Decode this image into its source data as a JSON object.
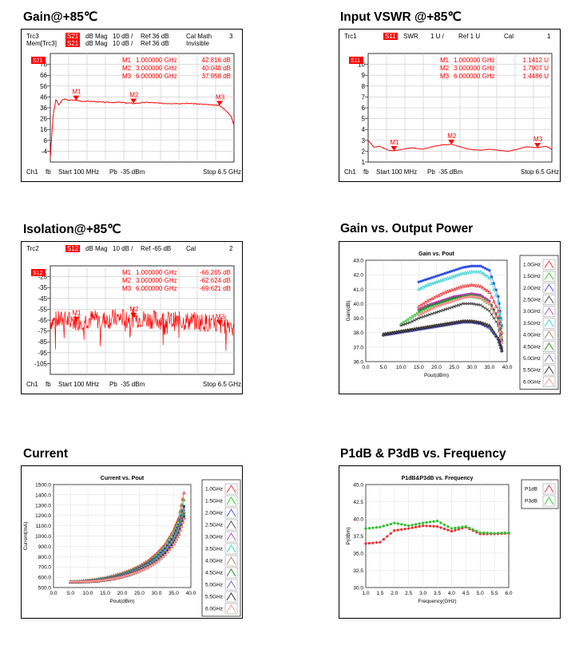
{
  "titles": {
    "p1": "Gain@+85℃",
    "p2": "Input VSWR @+85℃",
    "p3": "Isolation@+85℃",
    "p4": "Gain vs. Output Power",
    "p5": "Current",
    "p6": "P1dB & P3dB vs. Frequency"
  },
  "colors": {
    "trace": "#ff0000",
    "marker": "#e00000",
    "grid": "#c8c8c8"
  },
  "chart_data": [
    {
      "id": "gain85",
      "type": "line",
      "header": [
        [
          "Trc3",
          "S21",
          "dB Mag",
          "10 dB /",
          "Ref 36 dB",
          "Cal Math",
          "3"
        ],
        [
          "Mem[Trc3]",
          "S21",
          "dB Mag",
          "10 dB /",
          "Ref 36 dB",
          "Invisible",
          ""
        ]
      ],
      "markers": [
        {
          "label": "M1",
          "freq": "1.000000 GHz",
          "value": "42.816 dB",
          "x": 1.0,
          "y": 42.816
        },
        {
          "label": "M2",
          "freq": "3.000000 GHz",
          "value": "40.048 dB",
          "x": 3.0,
          "y": 40.048
        },
        {
          "label": "M3",
          "freq": "6.000000 GHz",
          "value": "37.958 dB",
          "x": 6.0,
          "y": 37.958
        }
      ],
      "trace_tag": "S21",
      "yticks": [
        "76",
        "66",
        "56",
        "46",
        "36",
        "26",
        "16",
        "6",
        "-4"
      ],
      "footer": [
        "Ch1",
        "fb",
        "Start 100 MHz",
        "Pb",
        "-35 dBm",
        "Stop 6.5 GHz"
      ],
      "xlim": [
        0.1,
        6.5
      ],
      "ylim": [
        -14,
        86
      ],
      "x": [
        0.1,
        0.2,
        0.3,
        0.4,
        0.5,
        0.6,
        0.7,
        0.8,
        1.0,
        1.2,
        1.5,
        2.0,
        2.5,
        3.0,
        3.5,
        4.0,
        4.5,
        5.0,
        5.5,
        6.0,
        6.2,
        6.4,
        6.5
      ],
      "values": [
        -10,
        30,
        44,
        38,
        43,
        44,
        43,
        43,
        43,
        42,
        42,
        41,
        41,
        40,
        41,
        40,
        40,
        40,
        39,
        38,
        34,
        28,
        20
      ]
    },
    {
      "id": "vswr85",
      "type": "line",
      "header": [
        [
          "Trc1",
          "S11",
          "SWR",
          "1 U /",
          "Ref 1 U",
          "Cal",
          "1"
        ]
      ],
      "markers": [
        {
          "label": "M1",
          "freq": "1.000000 GHz",
          "value": "1.1412 U",
          "x": 1.0,
          "y": 1.1412
        },
        {
          "label": "M2",
          "freq": "3.000000 GHz",
          "value": "1.7907 U",
          "x": 3.0,
          "y": 1.7907
        },
        {
          "label": "M3",
          "freq": "6.000000 GHz",
          "value": "1.4486 U",
          "x": 6.0,
          "y": 1.4486
        }
      ],
      "trace_tag": "S11",
      "yticks": [
        "10",
        "9",
        "8",
        "7",
        "6",
        "5",
        "4",
        "3",
        "2",
        "1"
      ],
      "footer": [
        "Ch1",
        "fb",
        "Start 100 MHz",
        "Pb",
        "-35 dBm",
        "Stop 6.5 GHz"
      ],
      "xlim": [
        0.1,
        6.5
      ],
      "ylim": [
        0,
        11
      ],
      "x": [
        0.1,
        0.3,
        0.5,
        0.8,
        1.0,
        1.3,
        1.6,
        2.0,
        2.4,
        2.7,
        3.0,
        3.3,
        3.6,
        4.0,
        4.3,
        4.6,
        5.0,
        5.3,
        5.6,
        6.0,
        6.3,
        6.5
      ],
      "values": [
        2.2,
        1.5,
        1.6,
        1.2,
        1.14,
        1.3,
        1.45,
        1.3,
        1.6,
        1.75,
        1.79,
        1.55,
        1.3,
        1.2,
        1.3,
        1.2,
        1.1,
        1.3,
        1.55,
        1.45,
        1.6,
        1.3
      ]
    },
    {
      "id": "iso85",
      "type": "line",
      "header": [
        [
          "Trc2",
          "S12",
          "dB Mag",
          "10 dB /",
          "Ref -65 dB",
          "Cal",
          "2"
        ]
      ],
      "markers": [
        {
          "label": "M1",
          "freq": "1.000000 GHz",
          "value": "-66.265 dB",
          "x": 1.0,
          "y": -66.265
        },
        {
          "label": "M2",
          "freq": "3.000000 GHz",
          "value": "-62.624 dB",
          "x": 3.0,
          "y": -62.624
        },
        {
          "label": "M3",
          "freq": "6.000000 GHz",
          "value": "-69.621 dB",
          "x": 6.0,
          "y": -69.621
        }
      ],
      "trace_tag": "S12",
      "yticks": [
        "-25",
        "-35",
        "-45",
        "-55",
        "-65",
        "-75",
        "-85",
        "-95",
        "-105"
      ],
      "footer": [
        "Ch1",
        "fb",
        "Start 100 MHz",
        "Pb",
        "-35 dBm",
        "Stop 6.5 GHz"
      ],
      "xlim": [
        0.1,
        6.5
      ],
      "ylim": [
        -115,
        -15
      ],
      "x": [
        0.1,
        0.5,
        1.0,
        1.5,
        2.0,
        2.5,
        3.0,
        3.5,
        4.0,
        4.5,
        5.0,
        5.5,
        6.0,
        6.5
      ],
      "values": [
        -66,
        -65,
        -66,
        -64,
        -65,
        -63,
        -63,
        -64,
        -65,
        -66,
        -66,
        -67,
        -70,
        -68
      ]
    },
    {
      "id": "gain_vs_pout",
      "type": "line",
      "title": "Gain vs. Pout",
      "xlabel": "Pout(dBm)",
      "ylabel": "Gain(dB)",
      "xlim": [
        0,
        40
      ],
      "ylim": [
        36,
        43
      ],
      "xticks": [
        "0.0",
        "5.0",
        "10.0",
        "15.0",
        "20.0",
        "25.0",
        "30.0",
        "35.0",
        "40.0"
      ],
      "yticks": [
        "43.0",
        "42.0",
        "41.0",
        "40.0",
        "39.0",
        "38.0",
        "37.0",
        "36.0"
      ],
      "x": [
        5,
        7.5,
        10,
        12.5,
        15,
        17.5,
        20,
        22.5,
        25,
        27.5,
        30,
        32.5,
        35,
        37.5,
        38.5
      ],
      "legend_position": "right",
      "series": [
        {
          "name": "1.0GHz",
          "color": "#e83030",
          "values": [
            null,
            null,
            null,
            null,
            39.8,
            40.2,
            40.5,
            40.8,
            41.0,
            41.2,
            41.3,
            41.2,
            40.8,
            39.5,
            38.0
          ]
        },
        {
          "name": "1.5GHz",
          "color": "#30c030",
          "values": [
            null,
            null,
            38.6,
            39.0,
            39.4,
            39.7,
            40.0,
            40.2,
            40.4,
            40.5,
            40.5,
            40.4,
            40.0,
            38.8,
            37.5
          ]
        },
        {
          "name": "2.0GHz",
          "color": "#3050e0",
          "values": [
            null,
            null,
            null,
            null,
            41.5,
            41.7,
            41.9,
            42.1,
            42.3,
            42.5,
            42.6,
            42.6,
            42.3,
            40.5,
            38.5
          ]
        },
        {
          "name": "2.5GHz",
          "color": "#404040",
          "values": [
            null,
            null,
            38.5,
            38.7,
            39.0,
            39.2,
            39.4,
            39.6,
            39.8,
            40.0,
            40.0,
            39.9,
            39.5,
            38.5,
            37.0
          ]
        },
        {
          "name": "3.0GHz",
          "color": "#c040c0",
          "values": [
            null,
            null,
            null,
            null,
            39.6,
            39.9,
            40.1,
            40.3,
            40.5,
            40.6,
            40.7,
            40.6,
            40.2,
            39.0,
            37.5
          ]
        },
        {
          "name": "3.5GHz",
          "color": "#30d0d0",
          "values": [
            null,
            null,
            null,
            null,
            41.0,
            41.3,
            41.5,
            41.7,
            41.9,
            42.1,
            42.2,
            42.2,
            41.8,
            40.2,
            38.5
          ]
        },
        {
          "name": "4.0GHz",
          "color": "#a08060",
          "values": [
            37.9,
            38.0,
            38.1,
            38.2,
            38.3,
            38.4,
            38.5,
            38.6,
            38.7,
            38.8,
            38.8,
            38.7,
            38.4,
            37.5,
            36.8
          ]
        },
        {
          "name": "4.5GHz",
          "color": "#208020",
          "values": [
            null,
            null,
            null,
            null,
            39.5,
            39.8,
            40.0,
            40.2,
            40.4,
            40.5,
            40.6,
            40.5,
            40.1,
            39.0,
            37.6
          ]
        },
        {
          "name": "5.0GHz",
          "color": "#6060c0",
          "values": [
            37.8,
            37.9,
            38.0,
            38.1,
            38.2,
            38.3,
            38.4,
            38.5,
            38.6,
            38.7,
            38.7,
            38.6,
            38.3,
            37.5,
            36.7
          ]
        },
        {
          "name": "5.5GHz",
          "color": "#202020",
          "values": [
            37.9,
            38.0,
            38.1,
            38.2,
            38.3,
            38.4,
            38.5,
            38.6,
            38.7,
            38.8,
            38.8,
            38.7,
            38.5,
            37.6,
            36.8
          ]
        },
        {
          "name": "6.0GHz",
          "color": "#ff9090",
          "values": [
            null,
            null,
            null,
            null,
            39.2,
            39.5,
            39.8,
            40.0,
            40.2,
            40.4,
            40.5,
            40.4,
            40.0,
            38.8,
            37.3
          ]
        }
      ]
    },
    {
      "id": "current_vs_pout",
      "type": "line",
      "title": "Current vs. Pout",
      "xlabel": "Pout(dBm)",
      "ylabel": "Current(mA)",
      "xlim": [
        0,
        40
      ],
      "ylim": [
        500,
        1500
      ],
      "xticks": [
        "0.0",
        "5.0",
        "10.0",
        "15.0",
        "20.0",
        "25.0",
        "30.0",
        "35.0",
        "40.0"
      ],
      "yticks": [
        "1500.0",
        "1400.0",
        "1300.0",
        "1200.0",
        "1100.0",
        "1000.0",
        "900.0",
        "800.0",
        "700.0",
        "600.0",
        "500.0"
      ],
      "x": [
        5,
        7.5,
        10,
        12.5,
        15,
        17.5,
        20,
        22.5,
        25,
        27.5,
        30,
        32.5,
        35,
        36.5,
        38
      ],
      "legend_position": "right",
      "series": [
        {
          "name": "1.0GHz",
          "color": "#e83030",
          "values": [
            555,
            560,
            570,
            580,
            595,
            615,
            640,
            670,
            710,
            760,
            830,
            920,
            1060,
            1180,
            1420
          ]
        },
        {
          "name": "1.5GHz",
          "color": "#30c030",
          "values": [
            555,
            558,
            565,
            575,
            590,
            608,
            630,
            660,
            700,
            745,
            810,
            900,
            1030,
            1150,
            1350
          ]
        },
        {
          "name": "2.0GHz",
          "color": "#3050e0",
          "values": [
            555,
            557,
            563,
            572,
            585,
            602,
            625,
            652,
            690,
            735,
            795,
            880,
            1000,
            1110,
            1290
          ]
        },
        {
          "name": "2.5GHz",
          "color": "#404040",
          "values": [
            555,
            557,
            562,
            570,
            583,
            600,
            622,
            650,
            686,
            730,
            790,
            870,
            990,
            1100,
            1280
          ]
        },
        {
          "name": "3.0GHz",
          "color": "#c040c0",
          "values": [
            555,
            557,
            561,
            568,
            580,
            596,
            618,
            645,
            680,
            722,
            780,
            860,
            975,
            1080,
            1250
          ]
        },
        {
          "name": "3.5GHz",
          "color": "#30d0d0",
          "values": [
            555,
            556,
            560,
            567,
            578,
            594,
            615,
            642,
            677,
            718,
            775,
            855,
            965,
            1070,
            1240
          ]
        },
        {
          "name": "4.0GHz",
          "color": "#a08060",
          "values": [
            555,
            556,
            560,
            566,
            577,
            592,
            612,
            638,
            672,
            712,
            768,
            845,
            955,
            1055,
            1220
          ]
        },
        {
          "name": "4.5GHz",
          "color": "#208020",
          "values": [
            555,
            556,
            559,
            565,
            576,
            590,
            610,
            635,
            668,
            708,
            762,
            838,
            945,
            1045,
            1210
          ]
        },
        {
          "name": "5.0GHz",
          "color": "#6060c0",
          "values": [
            555,
            556,
            559,
            564,
            574,
            588,
            607,
            632,
            664,
            703,
            756,
            830,
            935,
            1030,
            1190
          ]
        },
        {
          "name": "5.5GHz",
          "color": "#202020",
          "values": [
            555,
            556,
            558,
            563,
            573,
            586,
            605,
            629,
            660,
            699,
            750,
            823,
            925,
            1020,
            1180
          ]
        },
        {
          "name": "6.0GHz",
          "color": "#ff9090",
          "values": [
            555,
            556,
            558,
            563,
            572,
            585,
            603,
            627,
            657,
            695,
            745,
            815,
            915,
            1010,
            1165
          ]
        }
      ]
    },
    {
      "id": "p1db_p3db",
      "type": "line",
      "title": "P1dB&P3dB vs. Frequency",
      "xlabel": "Frequency(GHz)",
      "ylabel": "P(dBm)",
      "xlim": [
        1.0,
        6.0
      ],
      "ylim": [
        30,
        45
      ],
      "xticks": [
        "1.0",
        "1.5",
        "2.0",
        "2.5",
        "3.0",
        "3.5",
        "4.0",
        "4.5",
        "5.0",
        "5.5",
        "6.0"
      ],
      "yticks": [
        "45.0",
        "42.5",
        "40.0",
        "37.5",
        "35.0",
        "32.5",
        "30.0"
      ],
      "x": [
        1.0,
        1.5,
        2.0,
        2.5,
        3.0,
        3.5,
        4.0,
        4.5,
        5.0,
        5.5,
        6.0
      ],
      "legend_position": "right",
      "series": [
        {
          "name": "P1dB",
          "color": "#e83030",
          "values": [
            36.4,
            36.6,
            38.3,
            38.6,
            39.0,
            38.9,
            38.2,
            38.8,
            37.8,
            37.8,
            37.9
          ]
        },
        {
          "name": "P3dB",
          "color": "#30c030",
          "values": [
            38.6,
            38.8,
            39.4,
            39.0,
            39.4,
            39.7,
            38.6,
            38.9,
            38.0,
            37.9,
            38.0
          ]
        }
      ]
    }
  ]
}
